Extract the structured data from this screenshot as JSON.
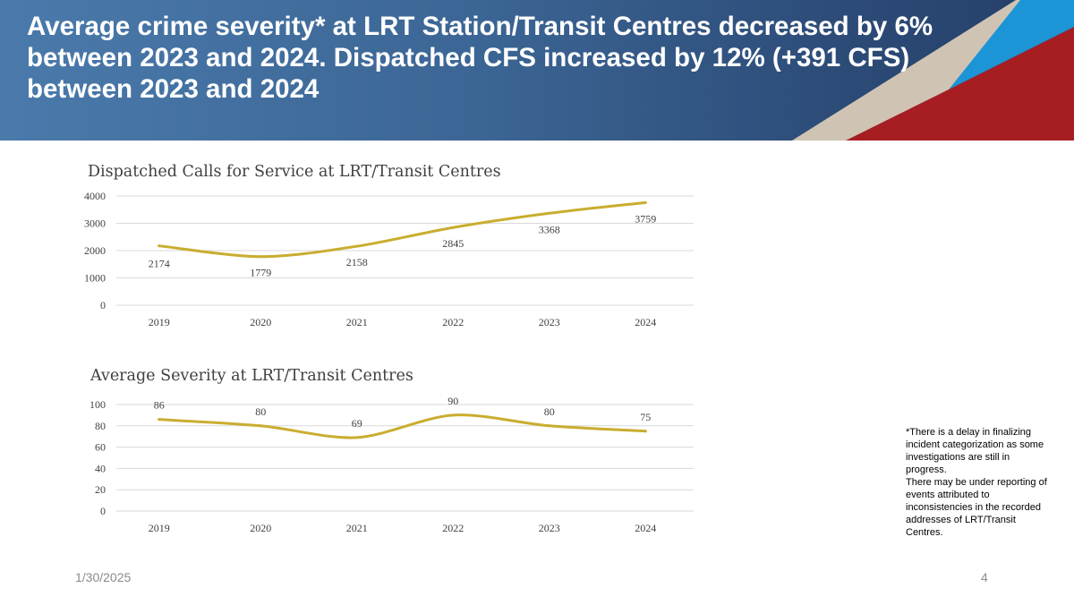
{
  "header": {
    "title": "Average crime severity* at LRT Station/Transit Centres decreased by 6% between 2023 and 2024. Dispatched CFS increased by 12% (+391 CFS) between 2023 and 2024"
  },
  "chart_data": [
    {
      "type": "line",
      "title": "Dispatched Calls for Service at LRT/Transit Centres",
      "categories": [
        "2019",
        "2020",
        "2021",
        "2022",
        "2023",
        "2024"
      ],
      "values": [
        2174,
        1779,
        2158,
        2845,
        3368,
        3759
      ],
      "yticks": [
        0,
        1000,
        2000,
        3000,
        4000
      ],
      "ylim": [
        0,
        4000
      ],
      "grid": true,
      "line_color": "#c9ad2f",
      "labels_position": "below"
    },
    {
      "type": "line",
      "title": "Average Severity at LRT/Transit Centres",
      "categories": [
        "2019",
        "2020",
        "2021",
        "2022",
        "2023",
        "2024"
      ],
      "values": [
        86,
        80,
        69,
        90,
        80,
        75
      ],
      "yticks": [
        0,
        20,
        40,
        60,
        80,
        100
      ],
      "ylim": [
        0,
        100
      ],
      "grid": true,
      "line_color": "#c9ad2f",
      "labels_position": "above"
    }
  ],
  "footnote": "*There is a delay in finalizing incident categorization as some investigations are still in progress.\nThere may be under reporting of events attributed to inconsistencies in the recorded addresses of LRT/Transit Centres.",
  "footer": {
    "date": "1/30/2025",
    "page": "4"
  }
}
